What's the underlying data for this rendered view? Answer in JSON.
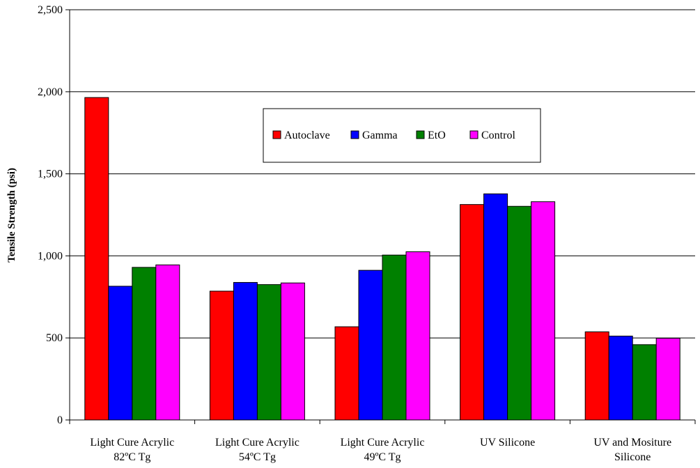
{
  "chart_data": {
    "type": "bar",
    "title": "",
    "xlabel": "",
    "ylabel": "Tensile Strength (psi)",
    "ylim": [
      0,
      2500
    ],
    "yticks": [
      0,
      500,
      1000,
      1500,
      2000,
      2500
    ],
    "ytick_labels": [
      "0",
      "500",
      "1,000",
      "1,500",
      "2,000",
      "2,500"
    ],
    "grid": true,
    "legend": "top-center",
    "categories": [
      [
        "Light Cure Acrylic",
        "82ºC Tg"
      ],
      [
        "Light Cure Acrylic",
        "54ºC Tg"
      ],
      [
        "Light Cure Acrylic",
        "49ºC Tg"
      ],
      [
        "UV Silicone"
      ],
      [
        "UV and Mositure",
        "Silicone"
      ]
    ],
    "series": [
      {
        "name": "Autoclave",
        "color": "#ff0000",
        "values": [
          1965,
          785,
          568,
          1313,
          537
        ]
      },
      {
        "name": "Gamma",
        "color": "#0000ff",
        "values": [
          815,
          838,
          912,
          1378,
          511
        ]
      },
      {
        "name": "EtO",
        "color": "#008000",
        "values": [
          930,
          825,
          1005,
          1302,
          459
        ]
      },
      {
        "name": "Control",
        "color": "#ff00ff",
        "values": [
          945,
          835,
          1025,
          1330,
          498
        ]
      }
    ]
  }
}
